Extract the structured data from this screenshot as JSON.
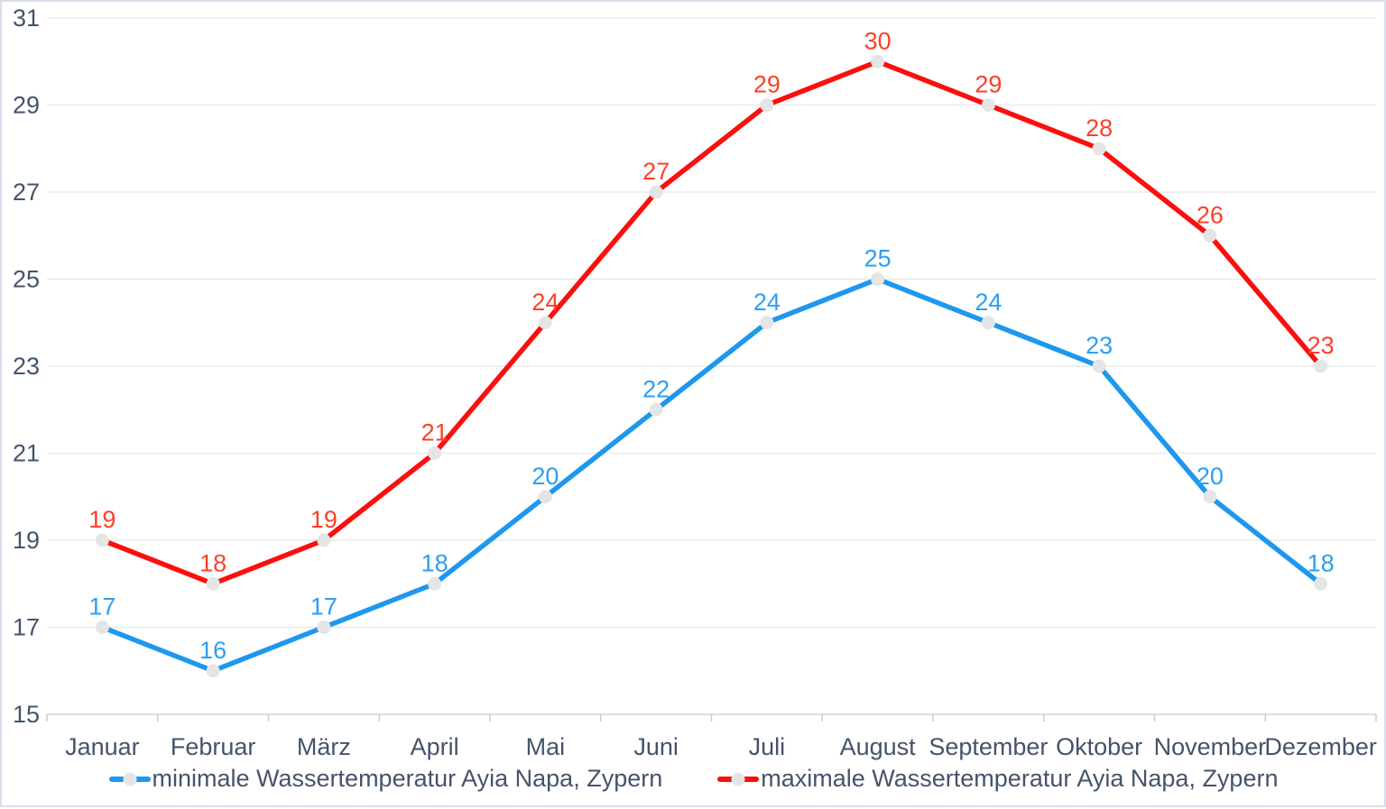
{
  "chart_data": {
    "type": "line",
    "categories": [
      "Januar",
      "Februar",
      "März",
      "April",
      "Mai",
      "Juni",
      "Juli",
      "August",
      "September",
      "Oktober",
      "November",
      "Dezember"
    ],
    "series": [
      {
        "id": "min-water-temperature",
        "name": "minimale Wassertemperatur Ayia Napa, Zypern",
        "values": [
          17,
          16,
          17,
          18,
          20,
          22,
          24,
          25,
          24,
          23,
          20,
          18
        ],
        "color": "#1E97EE",
        "label_color": "#2B9FF2",
        "marker_color": "#E5E5E5"
      },
      {
        "id": "max-water-temperature",
        "name": "maximale Wassertemperatur Ayia Napa, Zypern",
        "values": [
          19,
          18,
          19,
          21,
          24,
          27,
          29,
          30,
          29,
          28,
          26,
          23
        ],
        "color": "#FB0F0E",
        "label_color": "#FB4129",
        "marker_color": "#E5E5E5"
      }
    ],
    "ylim": [
      15,
      31
    ],
    "yticks": [
      15,
      17,
      19,
      21,
      23,
      25,
      27,
      29,
      31
    ],
    "grid": "horizontal",
    "legend_position": "bottom",
    "axis_text_color": "#44546A",
    "gridline_color": "#E9EAEB",
    "axis_line_color": "#D4D4D4",
    "tick_color": "#CCCCCC",
    "background": "#FFFFFF",
    "border_color": "#D9DEEE"
  }
}
